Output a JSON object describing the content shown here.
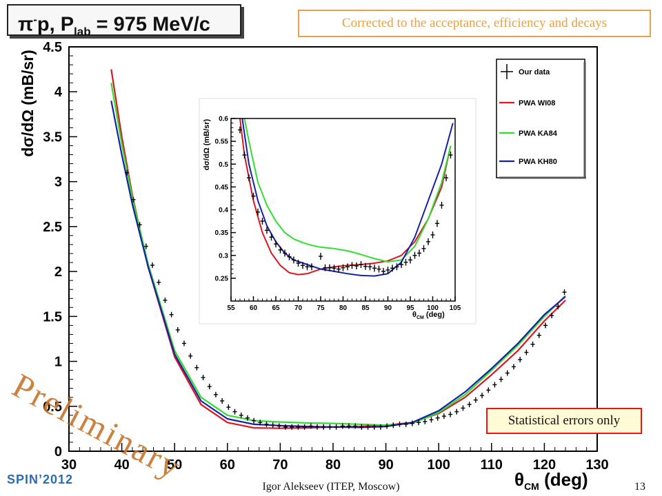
{
  "header": {
    "title_pi": "π",
    "title_sup": "-",
    "title_mid": "p, P",
    "title_sub": "lab",
    "title_rest": " = 975 MeV/c",
    "correction_note": "Corrected to the acceptance, efficiency and decays"
  },
  "note_statistical": "Statistical errors only",
  "watermark": "Preliminary",
  "footer": {
    "conference": "SPIN’2012",
    "author": "Igor Alekseev (ITEP, Moscow)",
    "page": "13"
  },
  "colors": {
    "wi08": "#e0141e",
    "ka84": "#2ee02e",
    "kh80": "#1420a8",
    "data": "#000000",
    "accent_orange": "#e8a04a",
    "footer_blue": "#2b6cb0"
  },
  "chart_data": [
    {
      "type": "line",
      "name": "main",
      "xlabel_main": "θ",
      "xlabel_sub": "CM",
      "xlabel_unit": " (deg)",
      "ylabel": "dσ/dΩ (mB/sr)",
      "xlim": [
        30,
        130
      ],
      "ylim": [
        0,
        4.5
      ],
      "x_ticks": [
        30,
        40,
        50,
        60,
        70,
        80,
        90,
        100,
        110,
        120,
        130
      ],
      "y_ticks": [
        0,
        0.5,
        1,
        1.5,
        2,
        2.5,
        3,
        3.5,
        4,
        4.5
      ],
      "y_tick_labels": [
        "0",
        "0.5",
        "1",
        "1.5",
        "2",
        "2.5",
        "3",
        "3.5",
        "4",
        "4.5"
      ],
      "grid": false,
      "legend_position": "top-right",
      "legend": [
        {
          "label": "Our data",
          "kind": "data"
        },
        {
          "label": "PWA WI08",
          "kind": "wi08"
        },
        {
          "label": "PWA KA84",
          "kind": "ka84"
        },
        {
          "label": "PWA KH80",
          "kind": "kh80"
        }
      ],
      "series": [
        {
          "name": "PWA WI08",
          "key": "wi08",
          "x": [
            38,
            40,
            42,
            45,
            50,
            55,
            60,
            65,
            70,
            75,
            80,
            85,
            90,
            95,
            100,
            105,
            110,
            115,
            120,
            124
          ],
          "y": [
            4.25,
            3.5,
            2.85,
            2.05,
            1.05,
            0.52,
            0.32,
            0.26,
            0.255,
            0.26,
            0.27,
            0.275,
            0.29,
            0.32,
            0.42,
            0.6,
            0.85,
            1.12,
            1.45,
            1.68
          ]
        },
        {
          "name": "PWA KA84",
          "key": "ka84",
          "x": [
            38,
            40,
            42,
            45,
            50,
            55,
            60,
            65,
            70,
            75,
            80,
            85,
            90,
            95,
            100,
            105,
            110,
            115,
            120,
            124
          ],
          "y": [
            4.1,
            3.42,
            2.82,
            2.08,
            1.12,
            0.6,
            0.4,
            0.34,
            0.325,
            0.315,
            0.31,
            0.3,
            0.29,
            0.31,
            0.43,
            0.63,
            0.9,
            1.18,
            1.5,
            1.73
          ]
        },
        {
          "name": "PWA KH80",
          "key": "kh80",
          "x": [
            38,
            40,
            42,
            45,
            50,
            55,
            60,
            65,
            70,
            75,
            80,
            85,
            90,
            95,
            100,
            105,
            110,
            115,
            120,
            124
          ],
          "y": [
            3.9,
            3.3,
            2.75,
            2.05,
            1.08,
            0.56,
            0.36,
            0.3,
            0.285,
            0.275,
            0.27,
            0.265,
            0.275,
            0.32,
            0.45,
            0.66,
            0.92,
            1.2,
            1.52,
            1.72
          ]
        }
      ],
      "data_points": {
        "name": "Our data",
        "x": [
          41,
          42.2,
          43.4,
          44.6,
          45.8,
          47,
          48.2,
          49.4,
          50.6,
          51.8,
          53,
          54.2,
          55.4,
          56.6,
          57.8,
          59,
          60.2,
          61.4,
          62.6,
          63.8,
          65,
          66.2,
          67.4,
          68.6,
          69.8,
          71,
          72.2,
          73.4,
          74.6,
          75.8,
          77,
          78.2,
          79.4,
          80.6,
          81.8,
          83,
          84.2,
          85.4,
          86.6,
          87.8,
          89,
          90.2,
          91.4,
          92.6,
          93.8,
          95,
          96.2,
          97.4,
          98.6,
          99.8,
          101,
          102.2,
          103.4,
          104.6,
          105.8,
          107,
          108.2,
          109.4,
          110.6,
          111.8,
          113,
          114.2,
          115.4,
          116.6,
          117.8,
          119,
          120.2,
          121.4,
          122.6,
          123.8
        ],
        "y": [
          3.1,
          2.8,
          2.52,
          2.28,
          2.07,
          1.88,
          1.68,
          1.52,
          1.35,
          1.2,
          1.06,
          0.93,
          0.82,
          0.72,
          0.63,
          0.56,
          0.49,
          0.44,
          0.4,
          0.37,
          0.34,
          0.32,
          0.3,
          0.29,
          0.28,
          0.27,
          0.27,
          0.27,
          0.27,
          0.28,
          0.27,
          0.27,
          0.27,
          0.27,
          0.28,
          0.28,
          0.28,
          0.27,
          0.27,
          0.27,
          0.27,
          0.28,
          0.29,
          0.3,
          0.3,
          0.31,
          0.32,
          0.33,
          0.35,
          0.37,
          0.39,
          0.41,
          0.44,
          0.48,
          0.52,
          0.57,
          0.62,
          0.68,
          0.74,
          0.8,
          0.87,
          0.94,
          1.02,
          1.1,
          1.19,
          1.29,
          1.4,
          1.51,
          1.61,
          1.77
        ]
      }
    },
    {
      "type": "line",
      "name": "inset",
      "xlabel_main": "θ",
      "xlabel_sub": "CM",
      "xlabel_unit": " (deg)",
      "ylabel": "dσ/dΩ (mB/sr)",
      "xlim": [
        55,
        105
      ],
      "ylim": [
        0.2,
        0.6
      ],
      "x_ticks": [
        55,
        60,
        65,
        70,
        75,
        80,
        85,
        90,
        95,
        100,
        105
      ],
      "y_ticks": [
        0.25,
        0.3,
        0.35,
        0.4,
        0.45,
        0.5,
        0.55,
        0.6
      ],
      "y_tick_labels": [
        "0.25",
        "0.3",
        "0.35",
        "0.4",
        "0.45",
        "0.5",
        "0.55",
        "0.6"
      ],
      "grid": false,
      "series": [
        {
          "name": "PWA WI08",
          "key": "wi08",
          "x": [
            57,
            58,
            60,
            62,
            64,
            66,
            68,
            70,
            72,
            75,
            78,
            81,
            84,
            87,
            90,
            93,
            96,
            99,
            102,
            104
          ],
          "y": [
            0.6,
            0.52,
            0.42,
            0.35,
            0.305,
            0.278,
            0.262,
            0.258,
            0.26,
            0.27,
            0.275,
            0.278,
            0.28,
            0.283,
            0.288,
            0.3,
            0.33,
            0.38,
            0.45,
            0.54
          ]
        },
        {
          "name": "PWA KA84",
          "key": "ka84",
          "x": [
            58,
            59,
            61,
            63,
            65,
            67,
            69,
            71,
            73,
            75,
            78,
            81,
            84,
            87,
            90,
            93,
            96,
            99,
            102,
            104
          ],
          "y": [
            0.6,
            0.55,
            0.46,
            0.41,
            0.375,
            0.35,
            0.336,
            0.328,
            0.322,
            0.318,
            0.315,
            0.31,
            0.302,
            0.293,
            0.286,
            0.29,
            0.32,
            0.38,
            0.46,
            0.54
          ]
        },
        {
          "name": "PWA KH80",
          "key": "kh80",
          "x": [
            57.5,
            59,
            61,
            63,
            65,
            67,
            69,
            72,
            75,
            78,
            81,
            84,
            87,
            90,
            93,
            96,
            99,
            102,
            104.5
          ],
          "y": [
            0.6,
            0.5,
            0.42,
            0.365,
            0.33,
            0.305,
            0.29,
            0.28,
            0.27,
            0.265,
            0.26,
            0.256,
            0.255,
            0.26,
            0.285,
            0.34,
            0.42,
            0.5,
            0.59
          ]
        }
      ],
      "data_points": {
        "name": "Our data",
        "x": [
          57,
          58,
          59,
          60,
          61,
          62,
          63,
          64,
          65,
          66,
          67,
          68,
          69,
          70,
          71,
          72,
          73,
          75,
          76,
          77,
          78,
          79,
          80,
          81,
          82,
          83,
          84,
          85,
          86,
          87,
          88,
          89,
          90,
          91,
          92,
          93,
          94,
          95,
          96,
          97,
          98,
          99,
          100,
          101,
          102,
          103,
          104
        ],
        "y": [
          0.575,
          0.52,
          0.47,
          0.43,
          0.395,
          0.375,
          0.355,
          0.34,
          0.325,
          0.312,
          0.305,
          0.297,
          0.29,
          0.283,
          0.278,
          0.275,
          0.275,
          0.298,
          0.273,
          0.273,
          0.272,
          0.27,
          0.273,
          0.275,
          0.278,
          0.277,
          0.28,
          0.276,
          0.275,
          0.272,
          0.27,
          0.265,
          0.268,
          0.272,
          0.275,
          0.28,
          0.285,
          0.29,
          0.3,
          0.305,
          0.315,
          0.33,
          0.345,
          0.37,
          0.41,
          0.47,
          0.52
        ]
      }
    }
  ]
}
